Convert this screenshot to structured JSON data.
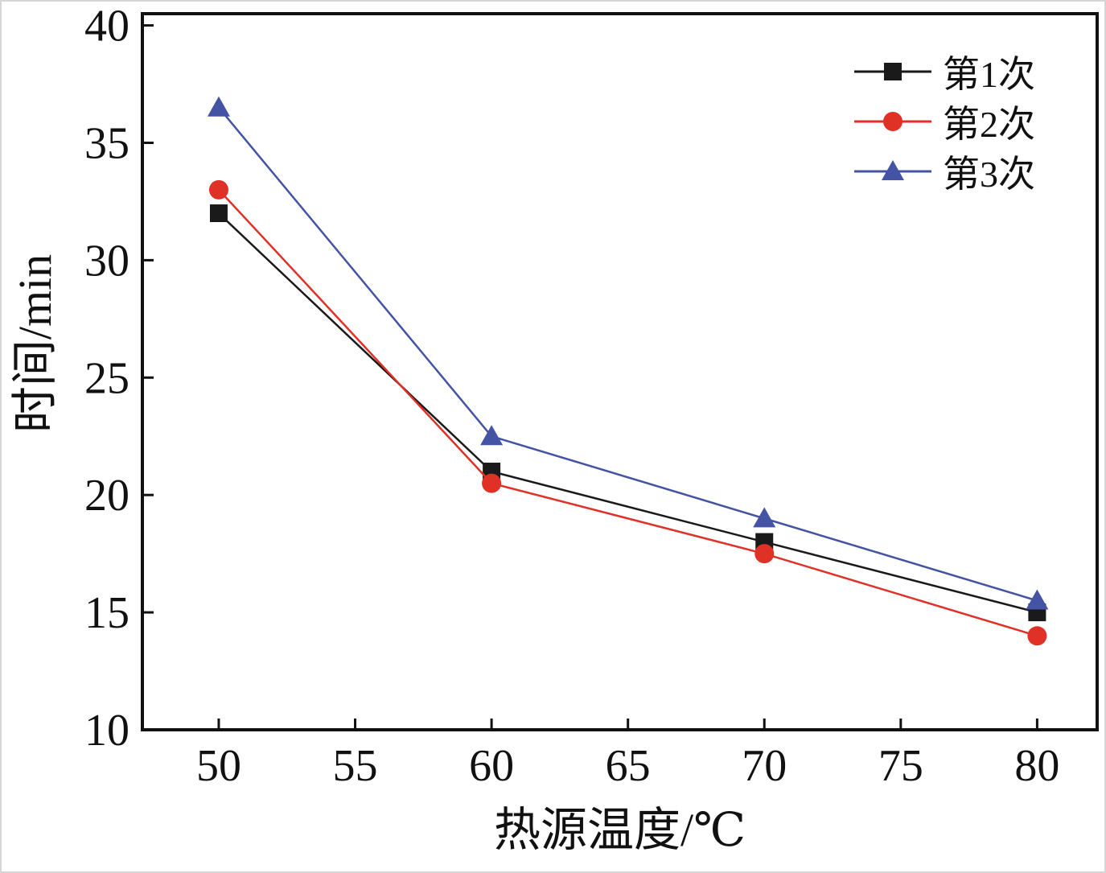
{
  "chart_data": {
    "type": "line",
    "title": "",
    "xlabel": "热源温度/℃",
    "ylabel": "时间/min",
    "x": [
      50,
      60,
      70,
      80
    ],
    "xlim": [
      47.2,
      82.2
    ],
    "ylim": [
      10,
      40.5
    ],
    "xticks": [
      50,
      55,
      60,
      65,
      70,
      75,
      80
    ],
    "yticks": [
      10,
      15,
      20,
      25,
      30,
      35,
      40
    ],
    "grid": false,
    "legend_position": "top-right",
    "series": [
      {
        "name": "第1次",
        "marker": "square",
        "color": "#1a1a1a",
        "values": [
          32,
          21,
          18,
          15
        ]
      },
      {
        "name": "第2次",
        "marker": "circle",
        "color": "#e03127",
        "values": [
          33,
          20.5,
          17.5,
          14
        ]
      },
      {
        "name": "第3次",
        "marker": "triangle",
        "color": "#4553a4",
        "values": [
          36.5,
          22.5,
          19,
          15.5
        ]
      }
    ]
  }
}
